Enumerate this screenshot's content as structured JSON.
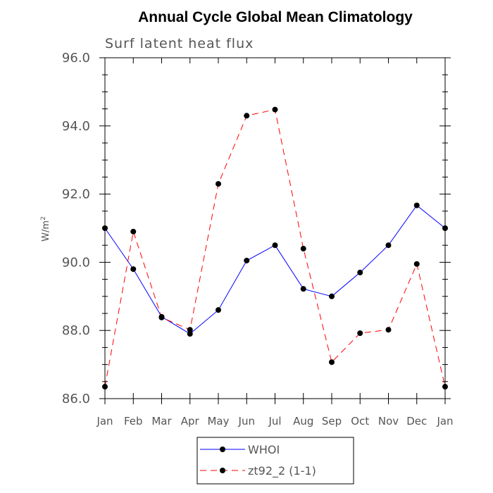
{
  "chart_data": {
    "type": "line",
    "title": "Annual Cycle Global Mean Climatology",
    "subtitle": "Surf latent heat flux",
    "ylabel_base": "W/m",
    "ylabel_sup": "2",
    "categories": [
      "Jan",
      "Feb",
      "Mar",
      "Apr",
      "May",
      "Jun",
      "Jul",
      "Aug",
      "Sep",
      "Oct",
      "Nov",
      "Dec",
      "Jan"
    ],
    "ylim": [
      86.0,
      96.0
    ],
    "yticks": [
      "86.0",
      "88.0",
      "90.0",
      "92.0",
      "94.0",
      "96.0"
    ],
    "grid": false,
    "legend_position": "bottom",
    "series": [
      {
        "name": "WHOI",
        "color": "#0000ff",
        "dash": "solid",
        "marker": "circle",
        "values": [
          91.0,
          89.8,
          88.4,
          87.9,
          88.6,
          90.05,
          90.5,
          89.22,
          89.0,
          89.7,
          90.5,
          91.67,
          91.0
        ]
      },
      {
        "name": "zt92_2 (1-1)",
        "color": "#ff0000",
        "dash": "dashed",
        "marker": "circle",
        "values": [
          86.35,
          90.9,
          88.38,
          88.02,
          92.3,
          94.3,
          94.48,
          90.4,
          87.07,
          87.92,
          88.02,
          89.95,
          86.35
        ]
      }
    ]
  }
}
